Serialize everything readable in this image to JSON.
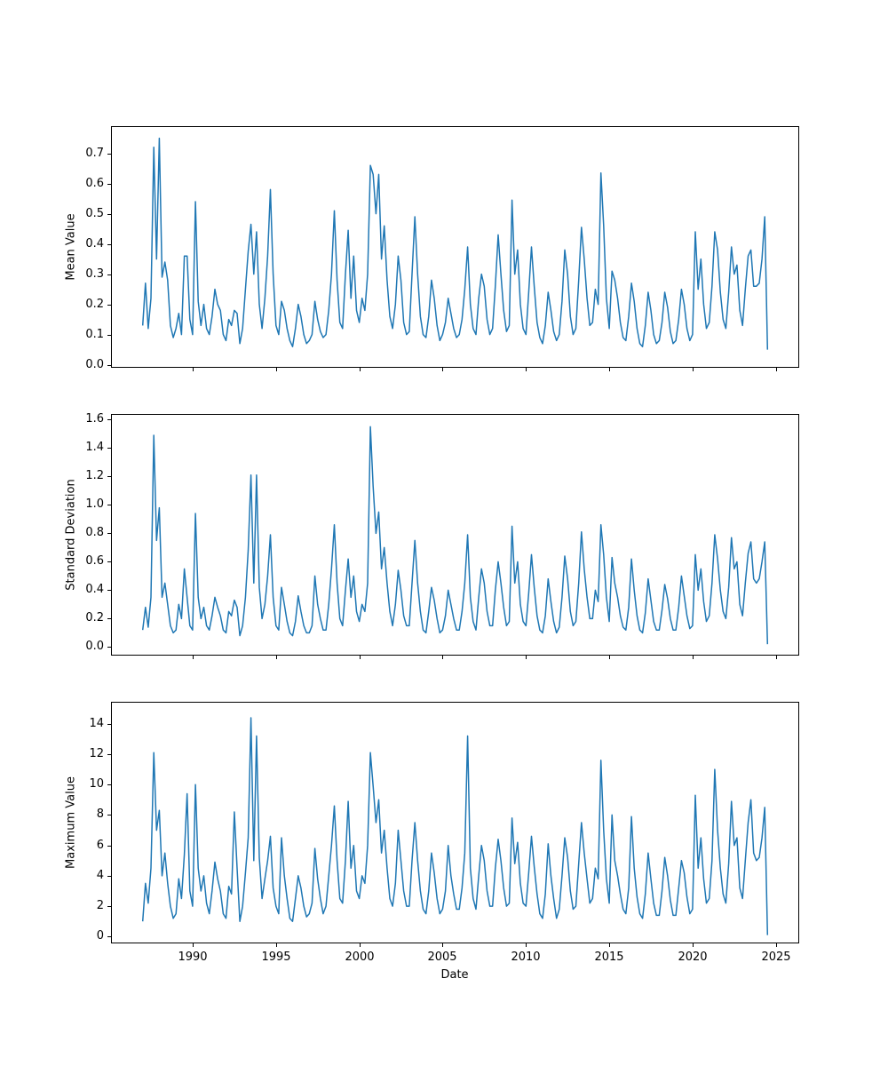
{
  "figure": {
    "background_color": "#ffffff",
    "frame_color": "#000000",
    "text_color": "#000000"
  },
  "chart_data": {
    "type": "line",
    "line_color": "#1f77b4",
    "line_width": 1.5,
    "legend": "none",
    "grid": false,
    "title": "",
    "x_axis": {
      "label": "Date",
      "start_year": 1987.0,
      "points_per_year": 6,
      "end_year": 2024.5,
      "lim": [
        1985.1,
        2026.4
      ],
      "ticks": [
        1990,
        1995,
        2000,
        2005,
        2010,
        2015,
        2020,
        2025
      ],
      "tick_labels": [
        "1990",
        "1995",
        "2000",
        "2005",
        "2010",
        "2015",
        "2020",
        "2025"
      ]
    },
    "charts": [
      {
        "ylabel": "Mean Value",
        "ylim": [
          -0.01,
          0.79
        ],
        "yticks": [
          0.0,
          0.1,
          0.2,
          0.3,
          0.4,
          0.5,
          0.6,
          0.7
        ],
        "ytick_labels": [
          "0.0",
          "0.1",
          "0.2",
          "0.3",
          "0.4",
          "0.5",
          "0.6",
          "0.7"
        ],
        "values": [
          0.13,
          0.27,
          0.12,
          0.22,
          0.72,
          0.35,
          0.75,
          0.29,
          0.34,
          0.28,
          0.13,
          0.09,
          0.12,
          0.17,
          0.1,
          0.36,
          0.36,
          0.15,
          0.1,
          0.54,
          0.21,
          0.13,
          0.2,
          0.12,
          0.1,
          0.16,
          0.25,
          0.2,
          0.18,
          0.1,
          0.08,
          0.15,
          0.13,
          0.18,
          0.17,
          0.07,
          0.12,
          0.25,
          0.375,
          0.465,
          0.3,
          0.44,
          0.2,
          0.12,
          0.22,
          0.36,
          0.58,
          0.3,
          0.13,
          0.1,
          0.21,
          0.18,
          0.12,
          0.08,
          0.06,
          0.12,
          0.2,
          0.16,
          0.1,
          0.07,
          0.08,
          0.1,
          0.21,
          0.15,
          0.11,
          0.09,
          0.1,
          0.18,
          0.3,
          0.51,
          0.28,
          0.14,
          0.12,
          0.3,
          0.445,
          0.22,
          0.36,
          0.18,
          0.14,
          0.22,
          0.18,
          0.3,
          0.66,
          0.63,
          0.5,
          0.63,
          0.35,
          0.46,
          0.28,
          0.16,
          0.12,
          0.2,
          0.36,
          0.28,
          0.14,
          0.1,
          0.11,
          0.3,
          0.49,
          0.3,
          0.16,
          0.1,
          0.09,
          0.16,
          0.28,
          0.22,
          0.13,
          0.08,
          0.1,
          0.14,
          0.22,
          0.17,
          0.12,
          0.09,
          0.1,
          0.15,
          0.25,
          0.39,
          0.2,
          0.12,
          0.1,
          0.22,
          0.3,
          0.26,
          0.15,
          0.1,
          0.12,
          0.26,
          0.43,
          0.3,
          0.18,
          0.11,
          0.13,
          0.545,
          0.3,
          0.38,
          0.2,
          0.12,
          0.1,
          0.24,
          0.39,
          0.26,
          0.14,
          0.09,
          0.07,
          0.13,
          0.24,
          0.18,
          0.11,
          0.08,
          0.1,
          0.21,
          0.38,
          0.3,
          0.16,
          0.1,
          0.12,
          0.28,
          0.455,
          0.35,
          0.22,
          0.13,
          0.14,
          0.25,
          0.2,
          0.635,
          0.46,
          0.22,
          0.12,
          0.31,
          0.28,
          0.22,
          0.14,
          0.09,
          0.08,
          0.16,
          0.27,
          0.21,
          0.12,
          0.07,
          0.06,
          0.13,
          0.24,
          0.18,
          0.1,
          0.07,
          0.08,
          0.14,
          0.24,
          0.19,
          0.11,
          0.07,
          0.08,
          0.15,
          0.25,
          0.2,
          0.12,
          0.08,
          0.1,
          0.44,
          0.25,
          0.35,
          0.2,
          0.12,
          0.14,
          0.26,
          0.44,
          0.38,
          0.24,
          0.15,
          0.12,
          0.24,
          0.39,
          0.3,
          0.33,
          0.18,
          0.13,
          0.25,
          0.36,
          0.38,
          0.26,
          0.26,
          0.27,
          0.35,
          0.49,
          0.05
        ]
      },
      {
        "ylabel": "Standard Deviation",
        "ylim": [
          -0.06,
          1.64
        ],
        "yticks": [
          0.0,
          0.2,
          0.4,
          0.6,
          0.8,
          1.0,
          1.2,
          1.4,
          1.6
        ],
        "ytick_labels": [
          "0.0",
          "0.2",
          "0.4",
          "0.6",
          "0.8",
          "1.0",
          "1.2",
          "1.4",
          "1.6"
        ],
        "values": [
          0.12,
          0.28,
          0.14,
          0.35,
          1.49,
          0.75,
          0.98,
          0.35,
          0.45,
          0.3,
          0.15,
          0.1,
          0.12,
          0.3,
          0.2,
          0.55,
          0.35,
          0.15,
          0.12,
          0.94,
          0.35,
          0.2,
          0.28,
          0.15,
          0.12,
          0.22,
          0.35,
          0.28,
          0.22,
          0.12,
          0.1,
          0.25,
          0.22,
          0.33,
          0.28,
          0.08,
          0.15,
          0.35,
          0.68,
          1.21,
          0.45,
          1.21,
          0.42,
          0.2,
          0.3,
          0.5,
          0.79,
          0.35,
          0.15,
          0.12,
          0.42,
          0.3,
          0.18,
          0.1,
          0.08,
          0.18,
          0.36,
          0.25,
          0.15,
          0.1,
          0.1,
          0.15,
          0.5,
          0.3,
          0.2,
          0.12,
          0.12,
          0.3,
          0.55,
          0.86,
          0.45,
          0.2,
          0.15,
          0.4,
          0.62,
          0.35,
          0.5,
          0.25,
          0.18,
          0.3,
          0.25,
          0.45,
          1.55,
          1.13,
          0.8,
          0.95,
          0.55,
          0.7,
          0.45,
          0.25,
          0.15,
          0.3,
          0.54,
          0.4,
          0.22,
          0.15,
          0.15,
          0.45,
          0.75,
          0.45,
          0.25,
          0.12,
          0.1,
          0.25,
          0.42,
          0.33,
          0.2,
          0.1,
          0.12,
          0.22,
          0.4,
          0.3,
          0.2,
          0.12,
          0.12,
          0.25,
          0.45,
          0.79,
          0.35,
          0.18,
          0.12,
          0.35,
          0.55,
          0.45,
          0.25,
          0.15,
          0.15,
          0.4,
          0.6,
          0.45,
          0.28,
          0.15,
          0.18,
          0.85,
          0.45,
          0.6,
          0.3,
          0.18,
          0.15,
          0.38,
          0.65,
          0.42,
          0.22,
          0.12,
          0.1,
          0.22,
          0.48,
          0.32,
          0.18,
          0.1,
          0.14,
          0.35,
          0.64,
          0.48,
          0.25,
          0.15,
          0.18,
          0.45,
          0.81,
          0.55,
          0.35,
          0.2,
          0.2,
          0.4,
          0.32,
          0.86,
          0.65,
          0.35,
          0.18,
          0.63,
          0.45,
          0.35,
          0.22,
          0.14,
          0.12,
          0.28,
          0.62,
          0.4,
          0.22,
          0.12,
          0.1,
          0.24,
          0.48,
          0.33,
          0.18,
          0.12,
          0.12,
          0.26,
          0.44,
          0.34,
          0.2,
          0.12,
          0.12,
          0.28,
          0.5,
          0.36,
          0.22,
          0.13,
          0.15,
          0.65,
          0.4,
          0.55,
          0.32,
          0.18,
          0.22,
          0.45,
          0.79,
          0.62,
          0.4,
          0.25,
          0.2,
          0.42,
          0.77,
          0.55,
          0.6,
          0.3,
          0.22,
          0.45,
          0.66,
          0.74,
          0.48,
          0.45,
          0.48,
          0.6,
          0.74,
          0.02
        ]
      },
      {
        "ylabel": "Maximum Value",
        "ylim": [
          -0.45,
          15.45
        ],
        "yticks": [
          0,
          2,
          4,
          6,
          8,
          10,
          12,
          14
        ],
        "ytick_labels": [
          "0",
          "2",
          "4",
          "6",
          "8",
          "10",
          "12",
          "14"
        ],
        "values": [
          1.0,
          3.5,
          2.2,
          4.5,
          12.1,
          7.0,
          8.3,
          4.0,
          5.5,
          3.5,
          2.0,
          1.2,
          1.5,
          3.8,
          2.5,
          5.4,
          9.4,
          3.0,
          2.0,
          10.0,
          4.5,
          3.0,
          4.0,
          2.2,
          1.5,
          3.0,
          4.9,
          3.8,
          3.0,
          1.5,
          1.2,
          3.3,
          2.8,
          8.2,
          4.5,
          1.0,
          2.0,
          4.2,
          6.5,
          14.4,
          5.0,
          13.2,
          5.2,
          2.5,
          3.8,
          5.0,
          6.6,
          3.2,
          2.0,
          1.5,
          6.5,
          4.0,
          2.5,
          1.2,
          1.0,
          2.5,
          4.0,
          3.2,
          2.0,
          1.3,
          1.5,
          2.2,
          5.8,
          3.8,
          2.5,
          1.5,
          2.0,
          4.0,
          6.0,
          8.6,
          5.0,
          2.5,
          2.2,
          5.0,
          8.9,
          4.5,
          6.0,
          3.0,
          2.5,
          4.0,
          3.5,
          6.0,
          12.1,
          9.9,
          7.5,
          9.0,
          5.5,
          7.0,
          4.5,
          2.5,
          2.0,
          3.5,
          7.0,
          5.0,
          3.0,
          2.0,
          2.0,
          5.0,
          7.5,
          5.0,
          3.0,
          1.8,
          1.5,
          3.0,
          5.5,
          4.2,
          2.5,
          1.5,
          1.8,
          3.0,
          6.0,
          4.0,
          2.8,
          1.8,
          1.8,
          3.2,
          5.5,
          13.2,
          4.5,
          2.5,
          1.8,
          4.0,
          6.0,
          5.0,
          3.0,
          2.0,
          2.0,
          4.5,
          6.4,
          5.0,
          3.2,
          2.0,
          2.2,
          7.8,
          4.8,
          6.2,
          3.5,
          2.2,
          2.0,
          4.2,
          6.6,
          4.6,
          2.8,
          1.5,
          1.2,
          2.8,
          6.1,
          4.0,
          2.5,
          1.2,
          1.8,
          4.0,
          6.5,
          5.2,
          3.0,
          1.8,
          2.0,
          4.8,
          7.5,
          5.5,
          3.8,
          2.2,
          2.5,
          4.5,
          3.8,
          11.6,
          7.0,
          3.8,
          2.2,
          8.0,
          5.0,
          4.0,
          2.8,
          1.8,
          1.5,
          3.2,
          7.9,
          4.5,
          2.6,
          1.5,
          1.2,
          2.8,
          5.5,
          3.8,
          2.2,
          1.4,
          1.4,
          3.0,
          5.2,
          4.0,
          2.4,
          1.4,
          1.4,
          3.2,
          5.0,
          4.2,
          2.6,
          1.5,
          1.8,
          9.3,
          4.5,
          6.5,
          3.8,
          2.2,
          2.5,
          5.0,
          11.0,
          7.0,
          4.5,
          2.8,
          2.2,
          4.8,
          8.9,
          6.0,
          6.5,
          3.2,
          2.5,
          5.0,
          7.5,
          9.0,
          5.5,
          5.0,
          5.2,
          6.5,
          8.5,
          0.1
        ]
      }
    ]
  }
}
